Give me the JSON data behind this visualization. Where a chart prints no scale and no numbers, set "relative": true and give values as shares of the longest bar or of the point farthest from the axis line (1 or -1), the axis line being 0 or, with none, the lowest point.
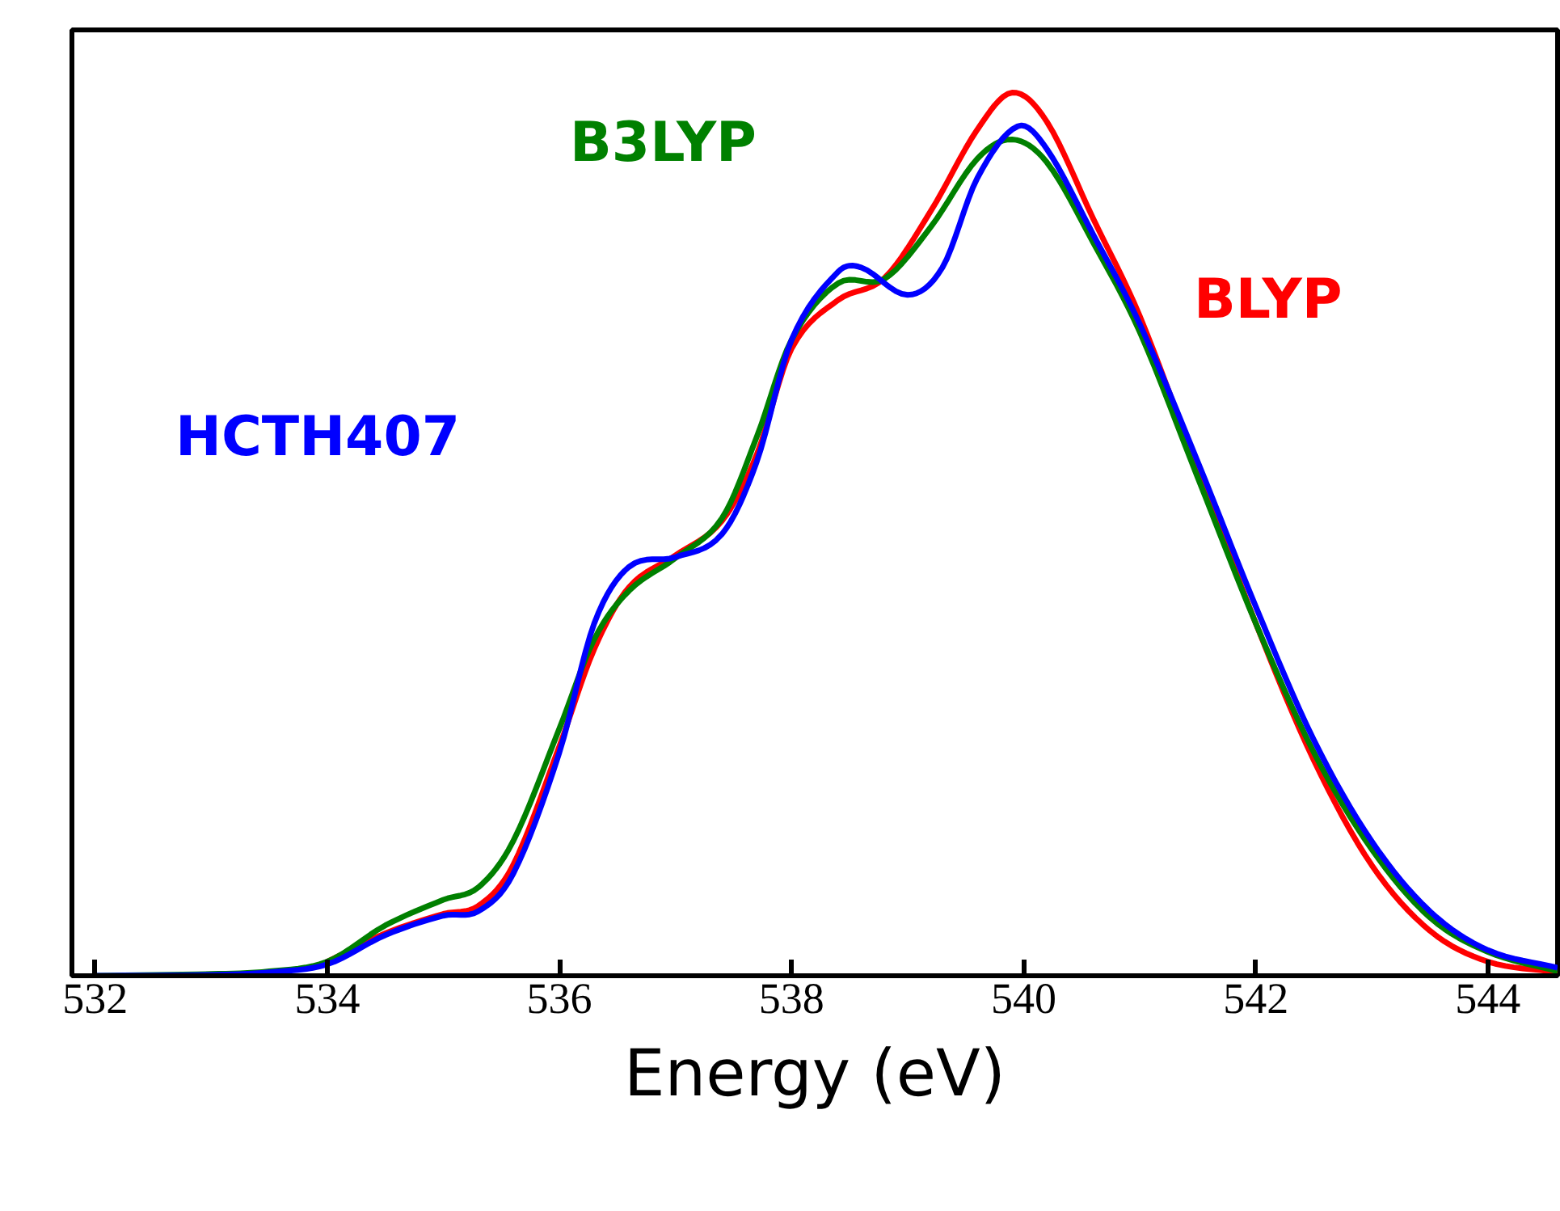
{
  "chart_data": {
    "type": "line",
    "relative": true,
    "xlabel": "Energy (eV)",
    "xlim": [
      531.8,
      544.6
    ],
    "xticks": [
      532,
      534,
      536,
      538,
      540,
      542,
      544
    ],
    "tick_labels": "x",
    "grid": false,
    "legend": false,
    "marker": "none",
    "line_style": "solid",
    "series": [
      {
        "name": "BLYP",
        "color": "#ff0000",
        "x": [
          534,
          534.5,
          535,
          535.3,
          535.6,
          536,
          536.3,
          536.6,
          537,
          537.4,
          537.7,
          538,
          538.4,
          538.8,
          539.2,
          539.6,
          539.9,
          540.2,
          540.6,
          541,
          541.5,
          542,
          542.5,
          543,
          543.5,
          544,
          544.6
        ],
        "values": [
          0.016,
          0.048,
          0.07,
          0.079,
          0.125,
          0.26,
          0.37,
          0.44,
          0.476,
          0.515,
          0.59,
          0.71,
          0.765,
          0.79,
          0.866,
          0.958,
          1.0,
          0.967,
          0.857,
          0.747,
          0.573,
          0.399,
          0.244,
          0.125,
          0.051,
          0.016,
          0.004
        ]
      },
      {
        "name": "B3LYP",
        "color": "#008000",
        "x": [
          532,
          533,
          533.5,
          534,
          534.5,
          535,
          535.3,
          535.6,
          536,
          536.3,
          536.6,
          537,
          537.4,
          537.7,
          538,
          538.4,
          538.8,
          539.2,
          539.6,
          539.9,
          540.2,
          540.6,
          541,
          541.5,
          542,
          542.5,
          543,
          543.5,
          544,
          544.6
        ],
        "values": [
          0,
          0.002,
          0.005,
          0.016,
          0.057,
          0.086,
          0.1,
          0.152,
          0.28,
          0.381,
          0.436,
          0.473,
          0.518,
          0.61,
          0.72,
          0.784,
          0.789,
          0.848,
          0.925,
          0.947,
          0.921,
          0.83,
          0.729,
          0.564,
          0.399,
          0.253,
          0.143,
          0.066,
          0.027,
          0.005
        ]
      },
      {
        "name": "HCTH407",
        "color": "#0000ff",
        "x": [
          532,
          533,
          533.5,
          534,
          534.5,
          535,
          535.3,
          535.6,
          536,
          536.3,
          536.6,
          537,
          537.4,
          537.7,
          538,
          538.4,
          538.6,
          539,
          539.3,
          539.6,
          539.95,
          540.2,
          540.6,
          541,
          541.5,
          542,
          542.5,
          543,
          543.5,
          544,
          544.6
        ],
        "values": [
          0,
          0.001,
          0.004,
          0.013,
          0.046,
          0.068,
          0.073,
          0.115,
          0.253,
          0.399,
          0.463,
          0.474,
          0.5,
          0.582,
          0.72,
          0.797,
          0.802,
          0.771,
          0.802,
          0.903,
          0.962,
          0.936,
          0.839,
          0.738,
          0.582,
          0.418,
          0.267,
          0.152,
          0.073,
          0.029,
          0.009
        ]
      }
    ]
  }
}
